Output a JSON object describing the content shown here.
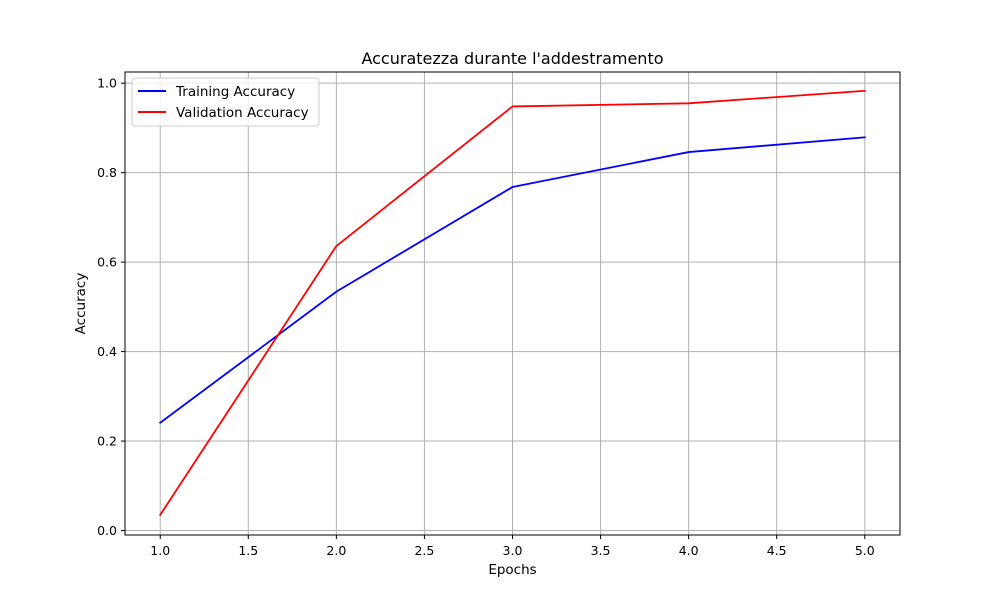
{
  "chart_data": {
    "type": "line",
    "title": "Accuratezza durante l'addestramento",
    "xlabel": "Epochs",
    "ylabel": "Accuracy",
    "x": [
      1,
      2,
      3,
      4,
      5
    ],
    "xlim": [
      0.8,
      5.2
    ],
    "ylim": [
      -0.01,
      1.025
    ],
    "xticks": [
      1.0,
      1.5,
      2.0,
      2.5,
      3.0,
      3.5,
      4.0,
      4.5,
      5.0
    ],
    "xtick_labels": [
      "1.0",
      "1.5",
      "2.0",
      "2.5",
      "3.0",
      "3.5",
      "4.0",
      "4.5",
      "5.0"
    ],
    "yticks": [
      0.0,
      0.2,
      0.4,
      0.6,
      0.8,
      1.0
    ],
    "ytick_labels": [
      "0.0",
      "0.2",
      "0.4",
      "0.6",
      "0.8",
      "1.0"
    ],
    "grid": true,
    "legend_position": "upper-left",
    "series": [
      {
        "name": "Training Accuracy",
        "color": "#0000ff",
        "values": [
          0.241,
          0.534,
          0.768,
          0.846,
          0.879
        ]
      },
      {
        "name": "Validation Accuracy",
        "color": "#ff0000",
        "values": [
          0.035,
          0.636,
          0.948,
          0.955,
          0.983
        ]
      }
    ]
  }
}
